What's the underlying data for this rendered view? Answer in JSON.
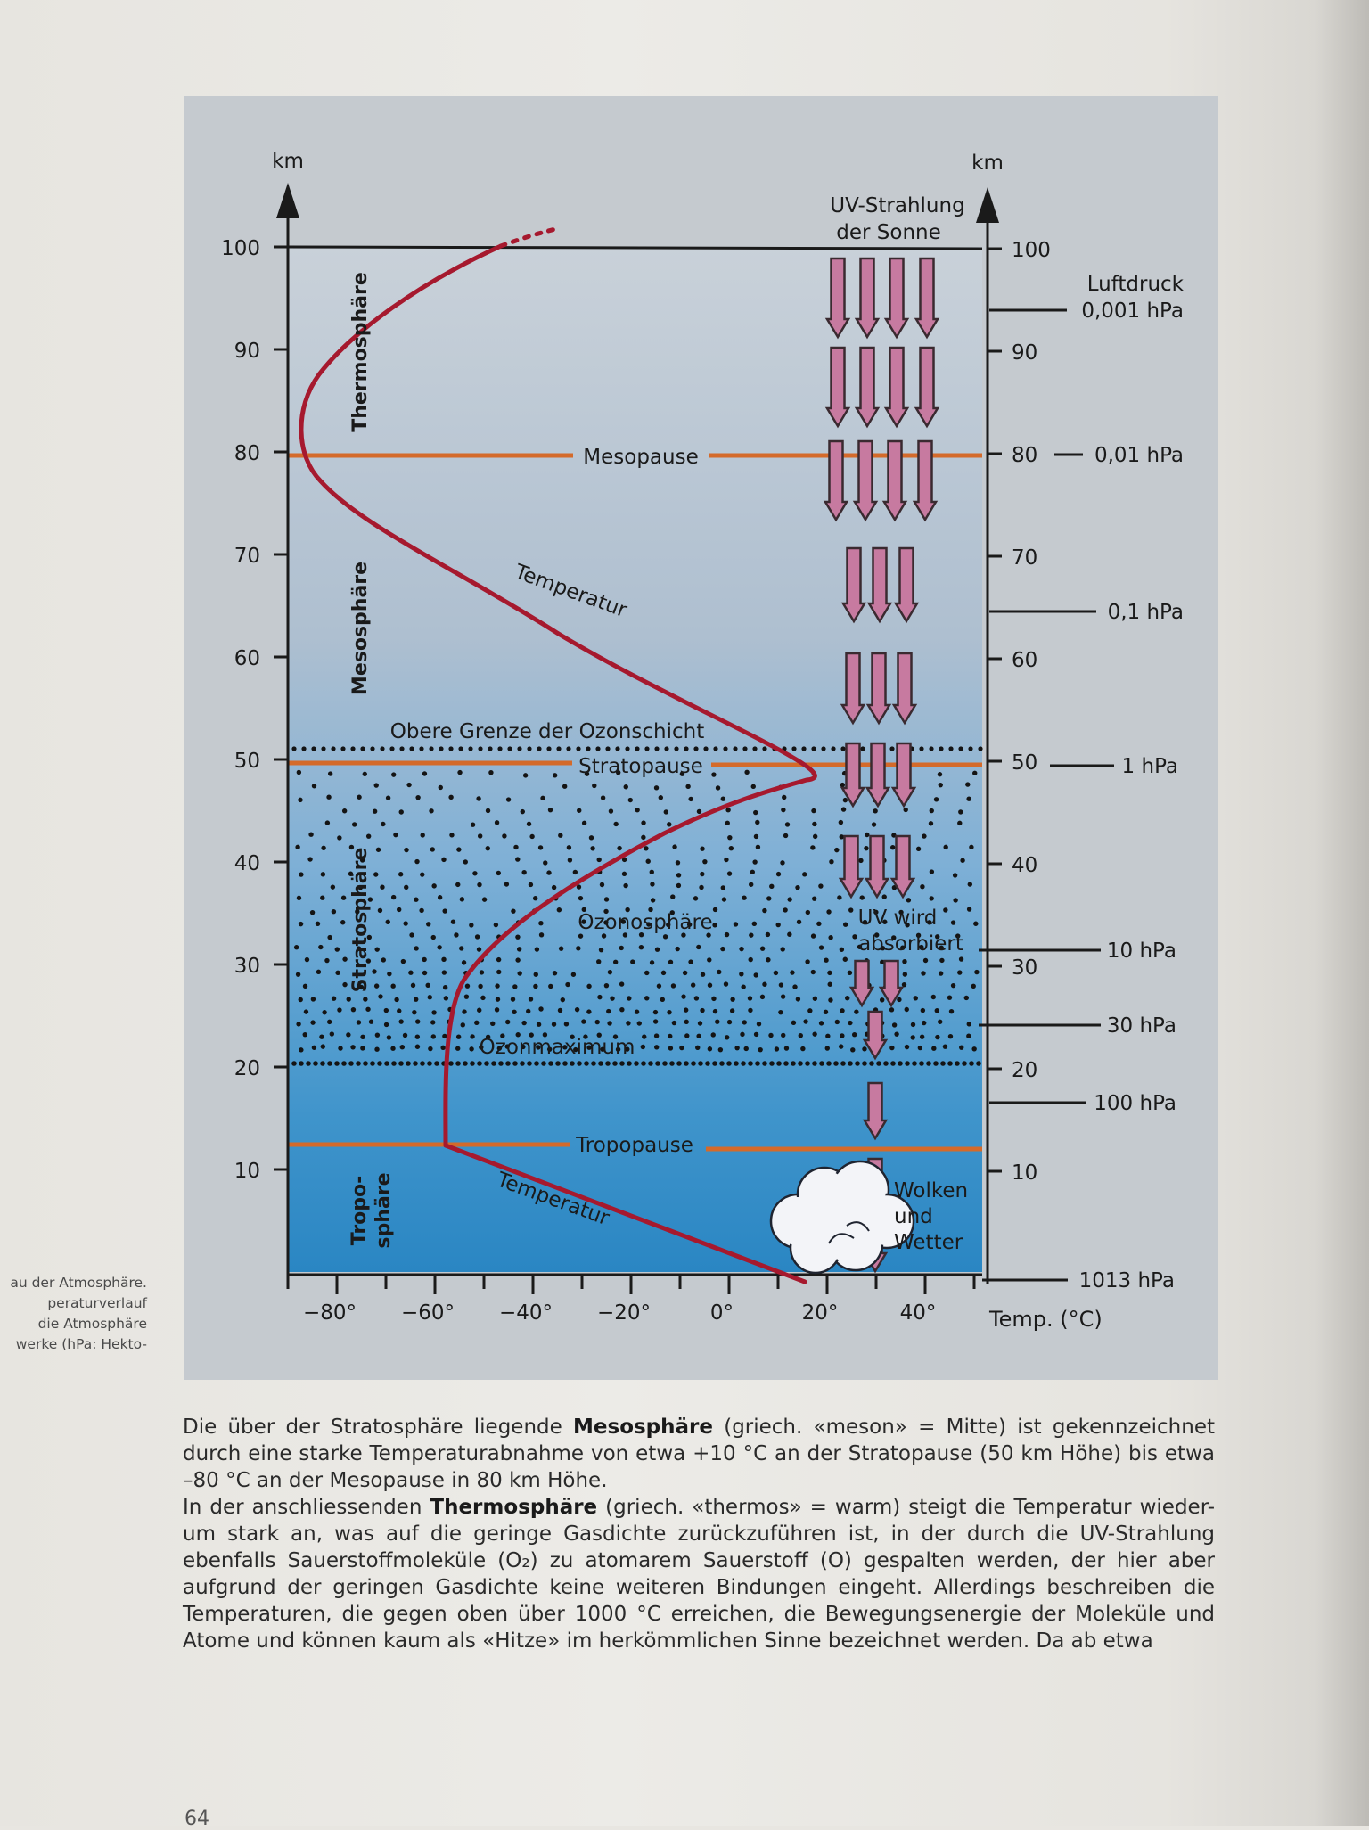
{
  "diagram": {
    "left_axis_unit": "km",
    "right_axis_unit": "km",
    "altitude_ticks": [
      "100",
      "90",
      "80",
      "70",
      "60",
      "50",
      "40",
      "30",
      "20",
      "10"
    ],
    "temperature_ticks": [
      "−80°",
      "−60°",
      "−40°",
      "−20°",
      "0°",
      "20°",
      "40°"
    ],
    "temperature_axis_label": "Temp. (°C)",
    "layers": [
      "Thermosphäre",
      "Mesosphäre",
      "Stratosphäre",
      "Tropo-",
      "sphäre"
    ],
    "boundaries": [
      "Mesopause",
      "Stratopause",
      "Tropopause"
    ],
    "ozone_labels": [
      "Obere Grenze der Ozonschicht",
      "Ozonosphäre",
      "Ozonmaximum"
    ],
    "temperature_labels": [
      "Temperatur",
      "Temperatur"
    ],
    "uv_label": [
      "UV-Strahlung",
      "der Sonne"
    ],
    "uv_absorbed_label": [
      "UV wird",
      "absorbiert"
    ],
    "weather_label": [
      "Wolken",
      "und",
      "Wetter"
    ],
    "pressure_title": [
      "Luftdruck",
      "0,001 hPa"
    ],
    "pressure_labels": [
      "0,01 hPa",
      "0,1 hPa",
      "1 hPa",
      "10 hPa",
      "30 hPa",
      "100 hPa",
      "1013 hPa"
    ],
    "colors": {
      "sky_top": "#c2ccd6",
      "sky_bottom": "#2d8ac6",
      "boundary_line": "#d46a2a",
      "temperature_curve": "#a6192e",
      "uv_arrow_fill": "#c77aa0",
      "uv_arrow_stroke": "#3a2a30",
      "frame_bg": "#c8ccd0"
    }
  },
  "side_caption": [
    "au der Atmosphäre.",
    "peraturverlauf",
    "die Atmosphäre",
    "werke (hPa: Hekto-"
  ],
  "body_text": {
    "lines": [
      [
        "Die über der Stratosphäre liegende ",
        "Mesosphäre",
        " (griech. «meson» = Mitte) ist gekennzeichnet"
      ],
      [
        "durch eine starke Temperaturabnahme von etwa +10 °C an der Stratopause (50 km Höhe) bis etwa"
      ],
      [
        "–80 °C an der Mesopause in 80 km Höhe."
      ],
      [
        "In der anschliessenden ",
        "Thermosphäre",
        " (griech. «thermos» = warm) steigt die Temperatur wieder-"
      ],
      [
        "um stark an, was auf die geringe Gasdichte zurückzuführen ist, in der durch die UV-Strahlung"
      ],
      [
        "ebenfalls Sauerstoffmoleküle (O₂) zu atomarem Sauerstoff (O) gespalten werden, der hier aber"
      ],
      [
        "aufgrund der geringen Gasdichte keine weiteren Bindungen eingeht. Allerdings beschreiben die"
      ],
      [
        "Temperaturen, die gegen oben über 1000 °C erreichen, die Bewegungsenergie der Moleküle und"
      ],
      [
        "Atome und können kaum als «Hitze» im herkömmlichen Sinne bezeichnet werden. Da ab etwa"
      ]
    ]
  },
  "page_number": "64"
}
